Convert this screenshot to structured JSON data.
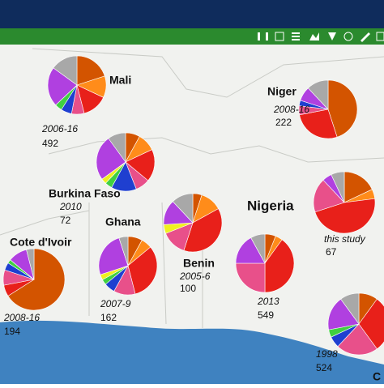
{
  "map": {
    "pies": [
      {
        "label": "Mali",
        "period": "2006-16",
        "count": 492,
        "slices": [
          {
            "color": "#d35400",
            "value": 20
          },
          {
            "color": "#ff8c1a",
            "value": 12
          },
          {
            "color": "#e8201a",
            "value": 14
          },
          {
            "color": "#e8508a",
            "value": 7
          },
          {
            "color": "#1f3fd0",
            "value": 6
          },
          {
            "color": "#40d040",
            "value": 4
          },
          {
            "color": "#b040e0",
            "value": 22
          },
          {
            "color": "#a8a8a8",
            "value": 15
          }
        ]
      },
      {
        "label": "Niger",
        "period": "2008-16",
        "count": 222,
        "slices": [
          {
            "color": "#d35400",
            "value": 45
          },
          {
            "color": "#e8201a",
            "value": 27
          },
          {
            "color": "#e8508a",
            "value": 5
          },
          {
            "color": "#1f3fd0",
            "value": 3
          },
          {
            "color": "#b040e0",
            "value": 8
          },
          {
            "color": "#a8a8a8",
            "value": 12
          }
        ]
      },
      {
        "label": "Burkina Faso",
        "period": "2010",
        "count": 72,
        "slices": [
          {
            "color": "#d35400",
            "value": 8
          },
          {
            "color": "#ff8c1a",
            "value": 10
          },
          {
            "color": "#e8201a",
            "value": 18
          },
          {
            "color": "#e8508a",
            "value": 8
          },
          {
            "color": "#1f3fd0",
            "value": 14
          },
          {
            "color": "#40d040",
            "value": 4
          },
          {
            "color": "#f0f020",
            "value": 3
          },
          {
            "color": "#b040e0",
            "value": 25
          },
          {
            "color": "#a8a8a8",
            "value": 10
          }
        ]
      },
      {
        "label": "Ghana",
        "period": "2007-9",
        "count": 162,
        "slices": [
          {
            "color": "#d35400",
            "value": 8
          },
          {
            "color": "#ff8c1a",
            "value": 6
          },
          {
            "color": "#e8201a",
            "value": 32
          },
          {
            "color": "#e8508a",
            "value": 12
          },
          {
            "color": "#1f3fd0",
            "value": 6
          },
          {
            "color": "#40d040",
            "value": 3
          },
          {
            "color": "#f0f020",
            "value": 3
          },
          {
            "color": "#b040e0",
            "value": 25
          },
          {
            "color": "#a8a8a8",
            "value": 5
          }
        ]
      },
      {
        "label": "Benin",
        "period": "2005-6",
        "count": 100,
        "slices": [
          {
            "color": "#d35400",
            "value": 5
          },
          {
            "color": "#ff8c1a",
            "value": 12
          },
          {
            "color": "#e8201a",
            "value": 38
          },
          {
            "color": "#e8508a",
            "value": 14
          },
          {
            "color": "#f0f020",
            "value": 5
          },
          {
            "color": "#b040e0",
            "value": 14
          },
          {
            "color": "#a8a8a8",
            "value": 12
          }
        ]
      },
      {
        "label": "Nigeria",
        "period": "this study",
        "count": 67,
        "slices": [
          {
            "color": "#d35400",
            "value": 18
          },
          {
            "color": "#ff8c1a",
            "value": 5
          },
          {
            "color": "#e8201a",
            "value": 47
          },
          {
            "color": "#e8508a",
            "value": 18
          },
          {
            "color": "#b040e0",
            "value": 5
          },
          {
            "color": "#a8a8a8",
            "value": 7
          }
        ]
      },
      {
        "period": "2013",
        "count": 549,
        "slices": [
          {
            "color": "#d35400",
            "value": 6
          },
          {
            "color": "#ff8c1a",
            "value": 4
          },
          {
            "color": "#e8201a",
            "value": 40
          },
          {
            "color": "#e8508a",
            "value": 25
          },
          {
            "color": "#b040e0",
            "value": 17
          },
          {
            "color": "#a8a8a8",
            "value": 8
          }
        ]
      },
      {
        "label": "Cote d'Ivoir",
        "period": "2008-16",
        "count": 194,
        "slices": [
          {
            "color": "#d35400",
            "value": 66
          },
          {
            "color": "#e8201a",
            "value": 6
          },
          {
            "color": "#e8508a",
            "value": 8
          },
          {
            "color": "#1f3fd0",
            "value": 4
          },
          {
            "color": "#40d040",
            "value": 2
          },
          {
            "color": "#b040e0",
            "value": 10
          },
          {
            "color": "#a8a8a8",
            "value": 4
          }
        ]
      },
      {
        "label": "C",
        "period": "1998",
        "count": 524,
        "slices": [
          {
            "color": "#d35400",
            "value": 10
          },
          {
            "color": "#e8201a",
            "value": 30
          },
          {
            "color": "#e8508a",
            "value": 22
          },
          {
            "color": "#1f3fd0",
            "value": 6
          },
          {
            "color": "#40d040",
            "value": 4
          },
          {
            "color": "#b040e0",
            "value": 18
          },
          {
            "color": "#a8a8a8",
            "value": 10
          }
        ]
      }
    ]
  }
}
